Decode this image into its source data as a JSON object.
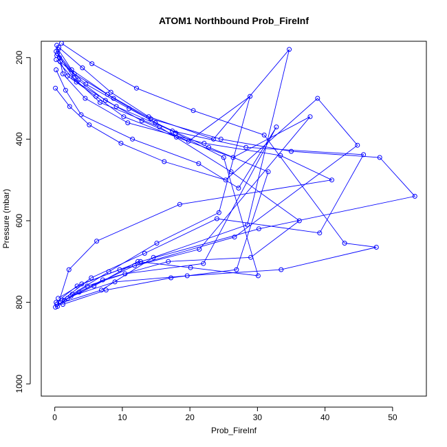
{
  "chart_data": {
    "type": "line",
    "title": "ATOM1 Northbound Prob_FireInf",
    "xlabel": "Prob_FireInf",
    "ylabel": "Pressure (mbar)",
    "xlim": [
      -2,
      55
    ],
    "ylim": [
      1030,
      160
    ],
    "y_reversed": true,
    "x_ticks": [
      0,
      10,
      20,
      30,
      40,
      50
    ],
    "y_ticks": [
      200,
      400,
      600,
      800,
      1000
    ],
    "grid": false,
    "legend": "none",
    "marker": "open-circle",
    "series_color": "#0000ff",
    "series": [
      {
        "x": [
          0.3,
          1.2,
          4.5,
          10.8,
          22.1,
          33.4,
          41.0,
          18.5,
          6.2,
          2.1,
          0.4
        ],
        "y": [
          170,
          240,
          300,
          360,
          410,
          440,
          500,
          560,
          650,
          720,
          810
        ]
      },
      {
        "x": [
          0.5,
          2.5,
          7.8,
          14.2,
          24.6,
          35.0,
          48.1,
          53.3,
          30.2,
          12.7,
          3.3,
          0.2
        ],
        "y": [
          180,
          230,
          290,
          350,
          400,
          430,
          445,
          540,
          620,
          700,
          760,
          800
        ]
      },
      {
        "x": [
          0.2,
          3.2,
          9.1,
          17.4,
          28.3,
          45.7,
          39.2,
          24.0,
          13.3,
          5.4,
          1.1
        ],
        "y": [
          205,
          260,
          320,
          380,
          420,
          438,
          630,
          595,
          680,
          740,
          795
        ]
      },
      {
        "x": [
          1.0,
          5.5,
          12.1,
          20.5,
          31.0,
          42.9,
          47.6,
          33.5,
          19.6,
          8.9,
          2.4,
          0.1
        ],
        "y": [
          165,
          215,
          275,
          330,
          390,
          655,
          665,
          720,
          735,
          750,
          785,
          812
        ]
      },
      {
        "x": [
          0.4,
          2.8,
          6.7,
          15.5,
          26.1,
          36.2,
          29.0,
          16.8,
          7.1,
          1.9
        ],
        "y": [
          190,
          250,
          310,
          370,
          480,
          600,
          690,
          700,
          745,
          790
        ]
      },
      {
        "x": [
          0.6,
          4.1,
          8.3,
          13.9,
          23.5,
          34.7,
          28.5,
          14.6,
          6.9,
          0.3
        ],
        "y": [
          175,
          225,
          285,
          345,
          400,
          180,
          610,
          690,
          770,
          805
        ]
      },
      {
        "x": [
          0.2,
          1.6,
          3.9,
          11.5,
          21.3,
          27.2,
          32.8,
          22.0,
          10.4,
          4.8,
          0.9
        ],
        "y": [
          230,
          280,
          340,
          400,
          460,
          520,
          370,
          705,
          730,
          760,
          800
        ]
      },
      {
        "x": [
          0.1,
          2.2,
          5.1,
          9.8,
          16.2,
          25.3,
          38.9,
          44.8,
          26.6,
          11.8,
          3.6
        ],
        "y": [
          275,
          320,
          365,
          410,
          455,
          500,
          300,
          415,
          640,
          710,
          775
        ]
      },
      {
        "x": [
          0.7,
          3.5,
          7.5,
          12.9,
          19.8,
          28.9,
          24.3,
          15.1,
          8.0,
          2.6
        ],
        "y": [
          200,
          255,
          305,
          355,
          405,
          295,
          580,
          655,
          725,
          780
        ]
      },
      {
        "x": [
          0.3,
          1.9,
          6.1,
          10.2,
          18.0,
          26.4,
          37.8,
          21.4,
          9.6,
          4.0,
          0.5
        ],
        "y": [
          195,
          245,
          295,
          345,
          395,
          445,
          345,
          670,
          720,
          755,
          790
        ]
      },
      {
        "x": [
          0.8,
          4.6,
          11.0,
          17.9,
          25.0,
          30.1,
          20.1,
          12.3,
          5.8,
          1.4
        ],
        "y": [
          210,
          265,
          325,
          385,
          445,
          735,
          715,
          700,
          760,
          795
        ]
      },
      {
        "x": [
          0.2,
          2.9,
          8.7,
          14.9,
          22.8,
          31.6,
          26.9,
          17.2,
          7.6,
          1.2
        ],
        "y": [
          185,
          240,
          300,
          360,
          420,
          480,
          720,
          740,
          770,
          805
        ]
      }
    ]
  }
}
